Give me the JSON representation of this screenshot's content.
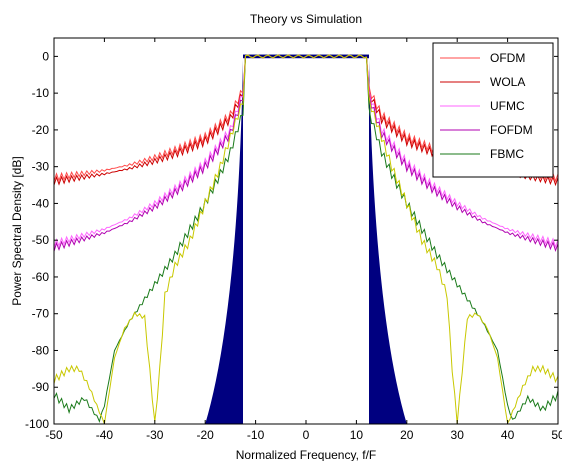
{
  "chart_data": {
    "type": "line",
    "title": "Theory vs Simulation",
    "xlabel": "Normalized Frequency, f/F",
    "ylabel": "Power Spectral Density [dB]",
    "xlim": [
      -50,
      50
    ],
    "ylim": [
      -100,
      5
    ],
    "xticks": [
      "-50",
      "-40",
      "-30",
      "-20",
      "-10",
      "0",
      "10",
      "20",
      "30",
      "40",
      "50"
    ],
    "yticks": [
      "0",
      "-10",
      "-20",
      "-30",
      "-40",
      "-50",
      "-60",
      "-70",
      "-80",
      "-90",
      "-100"
    ],
    "grid": false,
    "legend_position": "top-right",
    "series": [
      {
        "name": "OFDM",
        "color": "#ff4a4a",
        "x": [
          -50,
          -45,
          -40,
          -35,
          -30,
          -25,
          -20,
          -15,
          -12.5,
          12.5,
          15,
          20,
          25,
          30,
          35,
          40,
          45,
          50
        ],
        "y": [
          -33,
          -32,
          -31,
          -29.5,
          -27.5,
          -25,
          -22,
          -16,
          -9,
          -9,
          -16,
          -22,
          -25,
          -27.5,
          -29.5,
          -31,
          -32,
          -33
        ]
      },
      {
        "name": "WOLA",
        "color": "#cc0000",
        "x": [
          -50,
          -45,
          -40,
          -35,
          -30,
          -25,
          -20,
          -15,
          -12.5,
          12.5,
          15,
          20,
          25,
          30,
          35,
          40,
          45,
          50
        ],
        "y": [
          -34,
          -33,
          -32,
          -30.5,
          -28.5,
          -26,
          -23,
          -17,
          -10,
          -10,
          -17,
          -23,
          -26,
          -28.5,
          -30.5,
          -32,
          -33,
          -34
        ]
      },
      {
        "name": "UFMC",
        "color": "#ff66ff",
        "x": [
          -50,
          -45,
          -40,
          -35,
          -30,
          -25,
          -20,
          -15,
          -12.5,
          12.5,
          15,
          20,
          25,
          30,
          35,
          40,
          45,
          50
        ],
        "y": [
          -51,
          -49,
          -47,
          -44,
          -40,
          -35,
          -29,
          -20,
          -10,
          -10,
          -20,
          -29,
          -35,
          -40,
          -44,
          -47,
          -49,
          -51
        ]
      },
      {
        "name": "FOFDM",
        "color": "#b000b0",
        "x": [
          -50,
          -45,
          -40,
          -35,
          -30,
          -25,
          -20,
          -15,
          -12.5,
          12.5,
          15,
          20,
          25,
          30,
          35,
          40,
          45,
          50
        ],
        "y": [
          -52,
          -50,
          -48,
          -45,
          -41,
          -36,
          -30,
          -21,
          -11,
          -11,
          -21,
          -30,
          -36,
          -41,
          -45,
          -48,
          -50,
          -52
        ]
      },
      {
        "name": "FBMC",
        "color": "#1a7a1a",
        "x": [
          -50,
          -47,
          -44,
          -41,
          -40,
          -38,
          -35,
          -32,
          -29,
          -26,
          -23,
          -20,
          -17,
          -15,
          -12.5,
          12.5,
          15,
          17,
          20,
          23,
          26,
          29,
          32,
          35,
          38,
          40,
          41,
          44,
          47,
          50
        ],
        "y": [
          -92,
          -96,
          -93,
          -99,
          -95,
          -80,
          -72,
          -66,
          -60,
          -54,
          -47,
          -40,
          -32,
          -26,
          -15,
          -15,
          -26,
          -32,
          -40,
          -47,
          -54,
          -60,
          -66,
          -72,
          -80,
          -95,
          -99,
          -93,
          -96,
          -92
        ]
      },
      {
        "name": "",
        "color": "#c8c800",
        "x": [
          -50,
          -47,
          -45,
          -43,
          -40,
          -38,
          -36,
          -34,
          -32,
          -30,
          -29,
          -28,
          -26,
          -23,
          -20,
          -17,
          -15,
          -12.5,
          12.5,
          15,
          17,
          20,
          23,
          26,
          28,
          29,
          30,
          32,
          34,
          36,
          38,
          40,
          43,
          45,
          47,
          50
        ],
        "y": [
          -88,
          -85,
          -85,
          -90,
          -100,
          -82,
          -74,
          -70,
          -71,
          -100,
          -85,
          -65,
          -57,
          -50,
          -40,
          -30,
          -22,
          -12,
          -12,
          -22,
          -30,
          -40,
          -50,
          -57,
          -65,
          -85,
          -100,
          -71,
          -70,
          -74,
          -82,
          -100,
          -90,
          -85,
          -85,
          -88
        ]
      }
    ],
    "inband": {
      "name": "",
      "color": "#000080",
      "x": [
        -12.5,
        12.5
      ],
      "y": [
        -0.5,
        0.5
      ]
    }
  }
}
